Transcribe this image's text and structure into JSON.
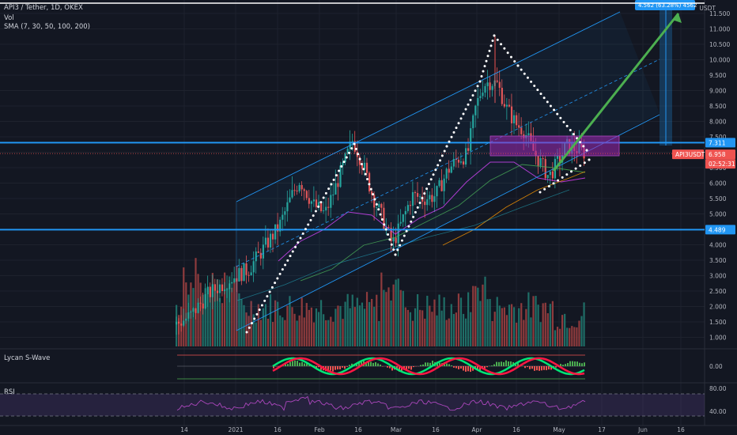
{
  "header": {
    "symbol_line": "API3 / Tether, 1D, OKEX",
    "vol_label": "Vol",
    "sma_label": "SMA (7, 30, 50, 100, 200)",
    "currency": "USDT"
  },
  "panes": {
    "wave_label": "Lycan S-Wave",
    "rsi_label": "RSI"
  },
  "chart_data": {
    "type": "candlestick",
    "price_axis": {
      "ticks": [
        "11.500",
        "11.000",
        "10.500",
        "10.000",
        "9.500",
        "9.000",
        "8.500",
        "8.000",
        "7.500",
        "7.000",
        "6.500",
        "6.000",
        "5.500",
        "5.000",
        "4.500",
        "4.000",
        "3.500",
        "3.000",
        "2.500",
        "2.000",
        "1.500",
        "1.000"
      ],
      "range": [
        0.7,
        11.8
      ]
    },
    "time_axis": {
      "ticks": [
        "14",
        "2021",
        "16",
        "Feb",
        "16",
        "Mar",
        "16",
        "Apr",
        "16",
        "May",
        "17",
        "Jun",
        "16"
      ]
    },
    "price_labels": [
      {
        "text": "7.311",
        "color": "#2196f3"
      },
      {
        "text": "6.958",
        "color": "#ef5350"
      },
      {
        "text": "02:52:31",
        "color": "#ef5350"
      },
      {
        "text": "4.489",
        "color": "#2196f3"
      },
      {
        "text": "API3USDT",
        "color": "#ef5350"
      }
    ],
    "horizontal_levels": [
      {
        "value": 7.311,
        "color": "#2196f3"
      },
      {
        "value": 4.489,
        "color": "#2196f3"
      }
    ],
    "measure_label": "4.562 (63.28%) 4562",
    "wave_axis": {
      "ticks": [
        "0.00"
      ]
    },
    "rsi_axis": {
      "ticks": [
        "80.00",
        "40.00"
      ]
    },
    "colors": {
      "up": "#26a69a",
      "down": "#ef5350",
      "level": "#2196f3",
      "channel": "#2196f3",
      "zone": "#9c27b0",
      "arrow": "#4caf50",
      "pattern": "#ffffff"
    }
  }
}
